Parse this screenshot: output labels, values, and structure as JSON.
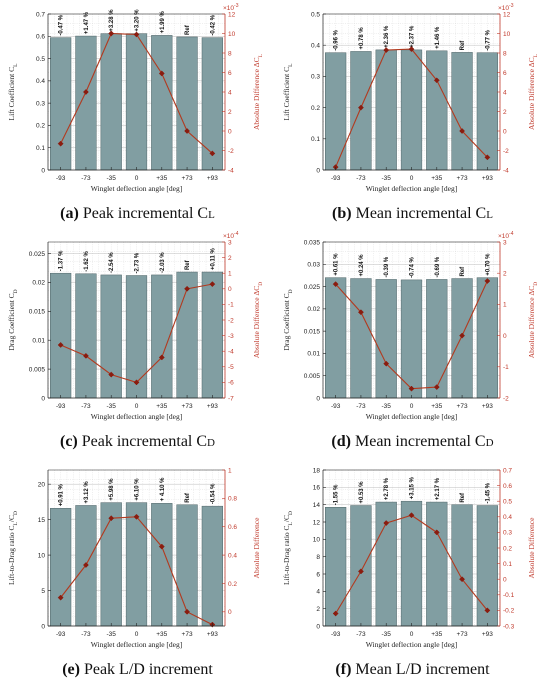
{
  "x_label": "Winglet deflection angle [deg]",
  "categories": [
    "-93",
    "-73",
    "-35",
    "0",
    "+35",
    "+73",
    "+93"
  ],
  "colors": {
    "bar_fill": "#819ea2",
    "bar_stroke": "#4f6467",
    "line": "#b23a1f",
    "marker": "#8a1c0f",
    "right_axis": "#c0392b",
    "grid": "#d6d6d6"
  },
  "chart_data": [
    {
      "type": "bar",
      "caption": {
        "letter": "(a)",
        "text": "Peak incremental C",
        "sub": "L"
      },
      "categories": [
        "-93",
        "-73",
        "-35",
        "0",
        "+35",
        "+73",
        "+93"
      ],
      "values": [
        0.594,
        0.601,
        0.612,
        0.612,
        0.604,
        0.597,
        0.594
      ],
      "bar_labels": [
        "-0.47 %",
        "+1.47 %",
        "+3.28 %",
        "+3.20 %",
        "+1.99 %",
        "Ref",
        "-0.42 %"
      ],
      "ylabel": "Lift Coefficient C",
      "ylabel_sub": "L",
      "ylim": [
        0,
        0.7
      ],
      "yticks": [
        0,
        0.1,
        0.2,
        0.3,
        0.4,
        0.5,
        0.6,
        0.7
      ],
      "ytick_labels": [
        "0",
        "0.1",
        "0.2",
        "0.3",
        "0.4",
        "0.5",
        "0.6",
        "0.7"
      ],
      "y2label": "Absolute Difference ΔC",
      "y2label_sub": "L",
      "y2lim": [
        -4,
        12
      ],
      "y2ticks": [
        -4,
        -2,
        0,
        2,
        4,
        6,
        8,
        10,
        12
      ],
      "y2tick_labels": [
        "-4",
        "-2",
        "0",
        "2",
        "4",
        "6",
        "8",
        "10",
        "12"
      ],
      "y2_exponent": "10",
      "y2_exponent_power": "-3",
      "diff_values": [
        -1.3,
        4.0,
        10.0,
        9.9,
        5.9,
        0.0,
        -2.3
      ],
      "grid": true
    },
    {
      "type": "bar",
      "caption": {
        "letter": "(b)",
        "text": "Mean incremental C",
        "sub": "L"
      },
      "categories": [
        "-93",
        "-73",
        "-35",
        "0",
        "+35",
        "+73",
        "+93"
      ],
      "values": [
        0.376,
        0.38,
        0.385,
        0.385,
        0.382,
        0.377,
        0.376
      ],
      "bar_labels": [
        "-0.96 %",
        "+0.78 %",
        "+2.36 %",
        "+2.37 %",
        "+1.46 %",
        "Ref",
        "-0.77 %"
      ],
      "ylabel": "Lift Coefficient C",
      "ylabel_sub": "L",
      "ylim": [
        0,
        0.5
      ],
      "yticks": [
        0,
        0.1,
        0.2,
        0.3,
        0.4,
        0.5
      ],
      "ytick_labels": [
        "0",
        "0.1",
        "0.2",
        "0.3",
        "0.4",
        "0.5"
      ],
      "y2label": "Absolute Difference ΔC",
      "y2label_sub": "L",
      "y2lim": [
        -4,
        12
      ],
      "y2ticks": [
        -4,
        -2,
        0,
        2,
        4,
        6,
        8,
        10,
        12
      ],
      "y2tick_labels": [
        "-4",
        "-2",
        "0",
        "2",
        "4",
        "6",
        "8",
        "10",
        "12"
      ],
      "y2_exponent": "10",
      "y2_exponent_power": "-3",
      "diff_values": [
        -3.7,
        2.4,
        8.3,
        8.4,
        5.2,
        0.0,
        -2.7
      ],
      "grid": true
    },
    {
      "type": "bar",
      "caption": {
        "letter": "(c)",
        "text": "Peak incremental C",
        "sub": "D"
      },
      "categories": [
        "-93",
        "-73",
        "-35",
        "0",
        "+35",
        "+73",
        "+93"
      ],
      "values": [
        0.0216,
        0.0215,
        0.0213,
        0.0212,
        0.0213,
        0.0218,
        0.0218
      ],
      "bar_labels": [
        "-1.37 %",
        "-1.62 %",
        "-2.54 %",
        "-2.73 %",
        "-2.03 %",
        "Ref",
        "+0.11 %"
      ],
      "ylabel": "Drag Coefficient C",
      "ylabel_sub": "D",
      "ylim": [
        0,
        0.027
      ],
      "yticks": [
        0,
        0.005,
        0.01,
        0.015,
        0.02,
        0.025
      ],
      "ytick_labels": [
        "0",
        "0.005",
        "0.01",
        "0.015",
        "0.02",
        "0.025"
      ],
      "y2label": "Absolute Difference ΔC",
      "y2label_sub": "D",
      "y2lim": [
        -7,
        3
      ],
      "y2ticks": [
        -7,
        -6,
        -5,
        -4,
        -3,
        -2,
        -1,
        0,
        1,
        2,
        3
      ],
      "y2tick_labels": [
        "-7",
        "-6",
        "-5",
        "-4",
        "-3",
        "-2",
        "-1",
        "0",
        "1",
        "2",
        "3"
      ],
      "y2_exponent": "10",
      "y2_exponent_power": "-4",
      "diff_values": [
        -3.6,
        -4.3,
        -5.5,
        -6.0,
        -4.4,
        0.0,
        0.3
      ],
      "grid": true
    },
    {
      "type": "bar",
      "caption": {
        "letter": "(d)",
        "text": "Mean incremental C",
        "sub": "D"
      },
      "categories": [
        "-93",
        "-73",
        "-35",
        "0",
        "+35",
        "+73",
        "+93"
      ],
      "values": [
        0.027,
        0.0268,
        0.0266,
        0.0265,
        0.0266,
        0.0268,
        0.027
      ],
      "bar_labels": [
        "+0.61 %",
        "+0.24 %",
        "-0.39 %",
        "-0.74 %",
        "-0.69 %",
        "Ref",
        "+0.70 %"
      ],
      "ylabel": "Drag Coefficient C",
      "ylabel_sub": "D",
      "ylim": [
        0,
        0.035
      ],
      "yticks": [
        0,
        0.005,
        0.01,
        0.015,
        0.02,
        0.025,
        0.03,
        0.035
      ],
      "ytick_labels": [
        "0",
        "0.005",
        "0.01",
        "0.015",
        "0.02",
        "0.025",
        "0.03",
        "0.035"
      ],
      "y2label": "Absolute Difference ΔC",
      "y2label_sub": "D",
      "y2lim": [
        -2,
        3
      ],
      "y2ticks": [
        -2,
        -1,
        0,
        1,
        2,
        3
      ],
      "y2tick_labels": [
        "-2",
        "-1",
        "0",
        "1",
        "2",
        "3"
      ],
      "y2_exponent": "10",
      "y2_exponent_power": "-4",
      "diff_values": [
        1.65,
        0.75,
        -0.9,
        -1.7,
        -1.65,
        0.0,
        1.75
      ],
      "grid": true
    },
    {
      "type": "bar",
      "caption": {
        "letter": "(e)",
        "text": "Peak L/D increment",
        "sub": ""
      },
      "categories": [
        "-93",
        "-73",
        "-35",
        "0",
        "+35",
        "+73",
        "+93"
      ],
      "values": [
        16.6,
        17.0,
        17.4,
        17.4,
        17.3,
        17.1,
        16.9
      ],
      "bar_labels": [
        "+0.91 %",
        "+3.12 %",
        "+5.98 %",
        "+6.10 %",
        "+ 4.10 %",
        "Ref",
        "-0.54 %"
      ],
      "ylabel": "Lift-to-Drag ratio C",
      "ylabel_sub": "L",
      "ylabel_tail": "/C",
      "ylabel_tail_sub": "D",
      "ylim": [
        0,
        22
      ],
      "yticks": [
        0,
        5,
        10,
        15,
        20
      ],
      "ytick_labels": [
        "0",
        "5",
        "10",
        "15",
        "20"
      ],
      "y2label": "Absolute Difference",
      "y2label_sub": "",
      "y2lim": [
        -0.1,
        1.0
      ],
      "y2ticks": [
        0,
        0.2,
        0.4,
        0.6,
        0.8,
        1.0
      ],
      "y2tick_labels": [
        "0",
        "0.2",
        "0.4",
        "0.6",
        "0.8",
        "1"
      ],
      "y2_exponent": "",
      "y2_exponent_power": "",
      "diff_values": [
        0.1,
        0.33,
        0.66,
        0.67,
        0.46,
        0.0,
        -0.09
      ],
      "grid": true
    },
    {
      "type": "bar",
      "caption": {
        "letter": "(f)",
        "text": "Mean L/D increment",
        "sub": ""
      },
      "categories": [
        "-93",
        "-73",
        "-35",
        "0",
        "+35",
        "+73",
        "+93"
      ],
      "values": [
        13.7,
        13.9,
        14.3,
        14.4,
        14.3,
        14.0,
        13.9
      ],
      "bar_labels": [
        "-1.55 %",
        "+0.53 %",
        "+2.78 %",
        "+3.15 %",
        "+2.17 %",
        "Ref",
        "-1.45 %"
      ],
      "ylabel": "Lift-to-Drag ratio C",
      "ylabel_sub": "L",
      "ylabel_tail": "/C",
      "ylabel_tail_sub": "D",
      "ylim": [
        0,
        18
      ],
      "yticks": [
        0,
        2,
        4,
        6,
        8,
        10,
        12,
        14,
        16,
        18
      ],
      "ytick_labels": [
        "0",
        "2",
        "4",
        "6",
        "8",
        "10",
        "12",
        "14",
        "16",
        "18"
      ],
      "y2label": "Absolute Difference",
      "y2label_sub": "",
      "y2lim": [
        -0.3,
        0.7
      ],
      "y2ticks": [
        -0.3,
        -0.2,
        -0.1,
        0,
        0.1,
        0.2,
        0.3,
        0.4,
        0.5,
        0.6,
        0.7
      ],
      "y2tick_labels": [
        "-0.3",
        "-0.2",
        "-0.1",
        "0",
        "0.1",
        "0.2",
        "0.3",
        "0.4",
        "0.5",
        "0.6",
        "0.7"
      ],
      "y2_exponent": "",
      "y2_exponent_power": "",
      "diff_values": [
        -0.22,
        0.05,
        0.36,
        0.41,
        0.3,
        0.0,
        -0.2
      ],
      "grid": true
    }
  ]
}
